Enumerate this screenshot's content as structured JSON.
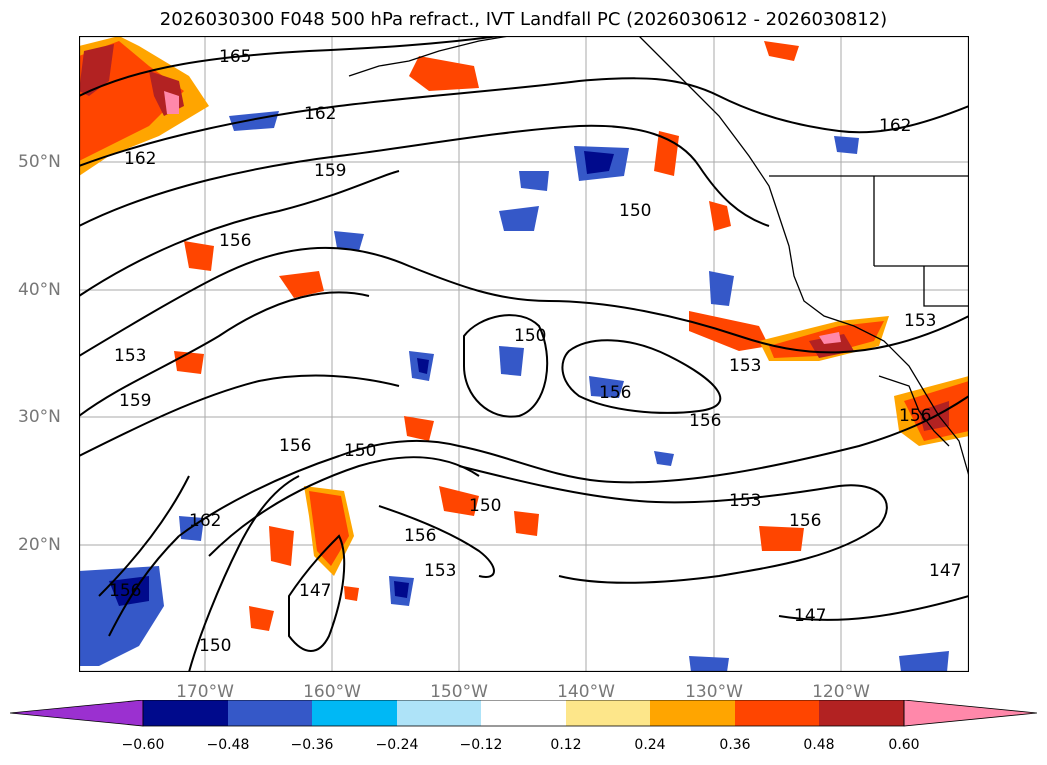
{
  "title": "2026030300 F048 500 hPa refract., IVT Landfall PC (2026030612 - 2026030812)",
  "lat_labels": [
    "50°N",
    "40°N",
    "30°N",
    "20°N"
  ],
  "lon_labels": [
    "170°W",
    "160°W",
    "150°W",
    "140°W",
    "130°W",
    "120°W"
  ],
  "contour_labels": [
    "165",
    "162",
    "162",
    "162",
    "159",
    "159",
    "156",
    "156",
    "156",
    "153",
    "153",
    "153",
    "150",
    "150",
    "150",
    "150",
    "156",
    "156",
    "156",
    "156",
    "153",
    "153",
    "147",
    "147",
    "147",
    "150",
    "162",
    "156"
  ],
  "colorbar": {
    "ticks": [
      "−0.60",
      "−0.48",
      "−0.36",
      "−0.24",
      "−0.12",
      "0.12",
      "0.24",
      "0.36",
      "0.48",
      "0.60"
    ],
    "colors": [
      "#9b30d0",
      "#000a8c",
      "#3558c8",
      "#00b8f5",
      "#aee3f8",
      "#ffffff",
      "#fde68a",
      "#ffa500",
      "#ff4500",
      "#b22222",
      "#ff88aa",
      "#ff88aa"
    ]
  }
}
